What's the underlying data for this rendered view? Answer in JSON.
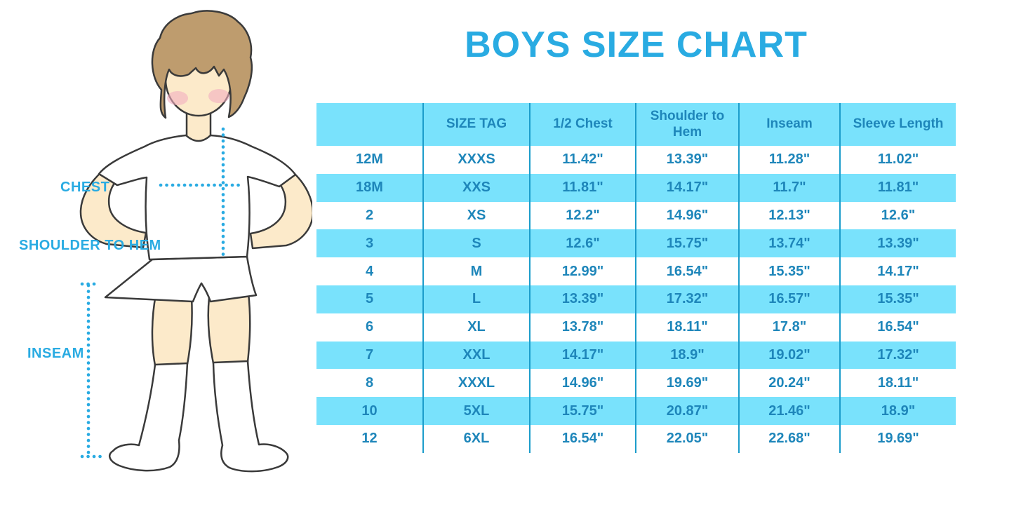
{
  "page_title": "BOYS SIZE CHART",
  "colors": {
    "accent_blue": "#29ABE2",
    "table_stripe_blue": "#79E2FC",
    "table_divider_blue": "#1C9DCB",
    "table_text_blue": "#1E86BA",
    "skin_tone": "#FCEACA",
    "hair_brown": "#BE9C6E",
    "blush_pink": "#F2AEC0"
  },
  "figure_labels": {
    "chest": "CHEST",
    "shoulder_to_hem": "SHOULDER TO HEM",
    "inseam": "INSEAM"
  },
  "chart_data": {
    "type": "table",
    "title": "BOYS SIZE CHART",
    "columns": [
      "",
      "SIZE TAG",
      "1/2 Chest",
      "Shoulder to Hem",
      "Inseam",
      "Sleeve Length"
    ],
    "rows": [
      [
        "12M",
        "XXXS",
        "11.42\"",
        "13.39\"",
        "11.28\"",
        "11.02\""
      ],
      [
        "18M",
        "XXS",
        "11.81\"",
        "14.17\"",
        "11.7\"",
        "11.81\""
      ],
      [
        "2",
        "XS",
        "12.2\"",
        "14.96\"",
        "12.13\"",
        "12.6\""
      ],
      [
        "3",
        "S",
        "12.6\"",
        "15.75\"",
        "13.74\"",
        "13.39\""
      ],
      [
        "4",
        "M",
        "12.99\"",
        "16.54\"",
        "15.35\"",
        "14.17\""
      ],
      [
        "5",
        "L",
        "13.39\"",
        "17.32\"",
        "16.57\"",
        "15.35\""
      ],
      [
        "6",
        "XL",
        "13.78\"",
        "18.11\"",
        "17.8\"",
        "16.54\""
      ],
      [
        "7",
        "XXL",
        "14.17\"",
        "18.9\"",
        "19.02\"",
        "17.32\""
      ],
      [
        "8",
        "XXXL",
        "14.96\"",
        "19.69\"",
        "20.24\"",
        "18.11\""
      ],
      [
        "10",
        "5XL",
        "15.75\"",
        "20.87\"",
        "21.46\"",
        "18.9\""
      ],
      [
        "12",
        "6XL",
        "16.54\"",
        "22.05\"",
        "22.68\"",
        "19.69\""
      ]
    ],
    "row_striping": "alternating white and light blue, header and even rows (18M,3,5,7,10) light blue",
    "legend_position": "none",
    "grid": "vertical column dividers only"
  }
}
